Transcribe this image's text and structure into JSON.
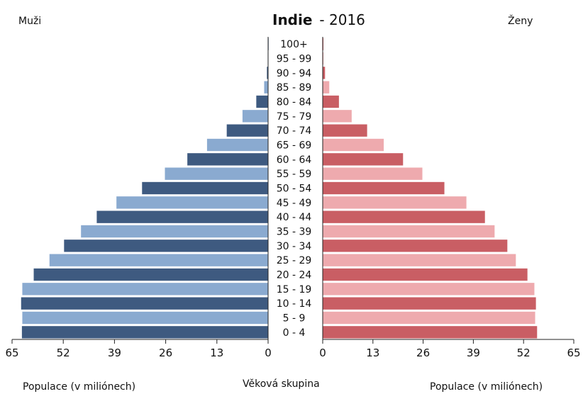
{
  "chart_data": {
    "type": "bar",
    "title": "Indie",
    "subtitle": "- 2016",
    "left_panel_label": "Muži",
    "right_panel_label": "Ženy",
    "left_xlabel": "Populace (v miliónech)",
    "right_xlabel": "Populace (v miliónech)",
    "center_label": "Věková skupina",
    "xlim": [
      0,
      65
    ],
    "ticks": [
      0,
      13,
      26,
      39,
      52,
      65
    ],
    "categories": [
      "0 - 4",
      "5 - 9",
      "10 - 14",
      "15 - 19",
      "20 - 24",
      "25 - 29",
      "30 - 34",
      "35 - 39",
      "40 - 44",
      "45 - 49",
      "50 - 54",
      "55 - 59",
      "60 - 64",
      "65 - 69",
      "70 - 74",
      "75 - 79",
      "80 - 84",
      "85 - 89",
      "90 - 94",
      "95 - 99",
      "100+"
    ],
    "series": [
      {
        "name": "Muži",
        "values": [
          62.5,
          62.4,
          62.7,
          62.4,
          59.5,
          55.5,
          51.8,
          47.5,
          43.5,
          38.5,
          32.0,
          26.2,
          20.5,
          15.5,
          10.5,
          6.5,
          3.0,
          1.0,
          0.3,
          0.1,
          0.05
        ]
      },
      {
        "name": "Ženy",
        "values": [
          55.5,
          55.0,
          55.2,
          54.8,
          53.0,
          50.0,
          47.8,
          44.5,
          42.0,
          37.2,
          31.5,
          25.8,
          20.8,
          15.8,
          11.5,
          7.5,
          4.2,
          1.7,
          0.6,
          0.2,
          0.05
        ]
      }
    ],
    "colors": {
      "male_dark": "#3e5a80",
      "male_light": "#8aaad0",
      "female_dark": "#c95e64",
      "female_light": "#eeaaae"
    },
    "grid": false
  }
}
